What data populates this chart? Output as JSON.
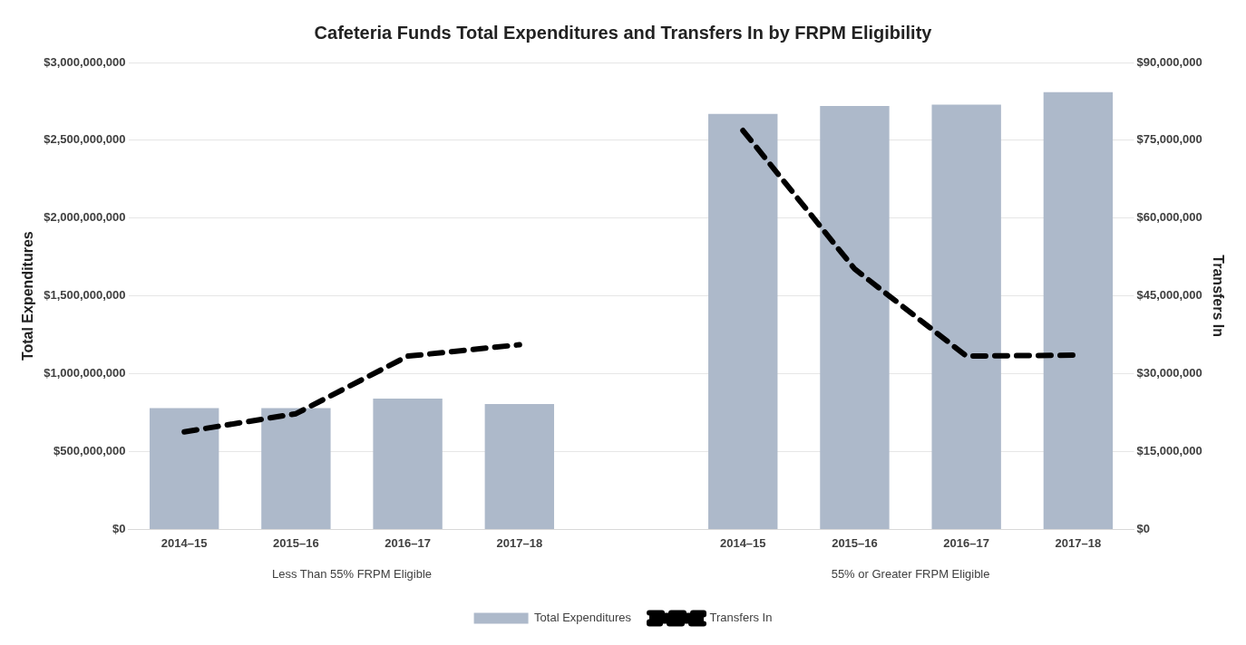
{
  "chart_data": {
    "type": "bar",
    "title": "Cafeteria Funds Total Expenditures and Transfers In by FRPM Eligibility",
    "ylabel": "Total Expenditures",
    "y2label": "Transfers In",
    "categories": [
      "2014–15",
      "2015–16",
      "2016–17",
      "2017–18",
      null,
      "2014–15",
      "2015–16",
      "2016–17",
      "2017–18"
    ],
    "series": [
      {
        "name": "Total Expenditures",
        "color": "#adb9ca",
        "values": [
          780000000,
          780000000,
          840000000,
          805000000,
          null,
          2670000000,
          2720000000,
          2730000000,
          2810000000
        ]
      },
      {
        "name": "Transfers In",
        "type": "line",
        "axis": "y2",
        "color": "#000000",
        "line_style": "dashed",
        "marker": "none",
        "values": [
          18800000,
          22300000,
          33400000,
          35600000,
          null,
          76900000,
          50200000,
          33400000,
          33600000
        ]
      }
    ],
    "ylim": [
      0,
      3000000000
    ],
    "yticks": [
      {
        "value": 0,
        "label": "$0"
      },
      {
        "value": 500000000,
        "label": "$500,000,000"
      },
      {
        "value": 1000000000,
        "label": "$1,000,000,000"
      },
      {
        "value": 1500000000,
        "label": "$1,500,000,000"
      },
      {
        "value": 2000000000,
        "label": "$2,000,000,000"
      },
      {
        "value": 2500000000,
        "label": "$2,500,000,000"
      },
      {
        "value": 3000000000,
        "label": "$3,000,000,000"
      }
    ],
    "y2lim": [
      0,
      90000000
    ],
    "y2ticks": [
      {
        "value": 0,
        "label": "$0"
      },
      {
        "value": 15000000,
        "label": "$15,000,000"
      },
      {
        "value": 30000000,
        "label": "$30,000,000"
      },
      {
        "value": 45000000,
        "label": "$45,000,000"
      },
      {
        "value": 60000000,
        "label": "$60,000,000"
      },
      {
        "value": 75000000,
        "label": "$75,000,000"
      },
      {
        "value": 90000000,
        "label": "$90,000,000"
      }
    ],
    "annotations": [
      "Less Than 55% FRPM Eligible",
      "55% or Greater FRPM Eligible"
    ],
    "grid": "y",
    "legend": "bottom"
  }
}
